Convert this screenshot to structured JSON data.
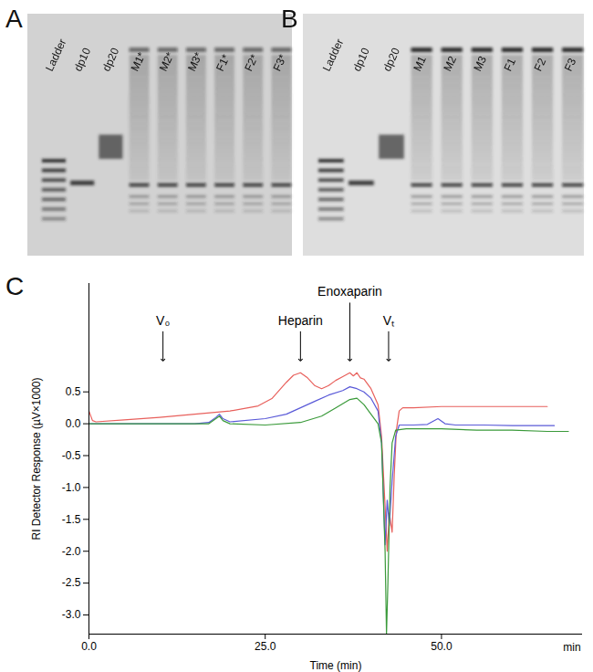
{
  "panels": [
    {
      "label": "A",
      "type": "gel",
      "lanes": [
        "Ladder",
        "dp10",
        "dp20",
        "M1*",
        "M2*",
        "M3*",
        "F1*",
        "F2*",
        "F3*"
      ]
    },
    {
      "label": "B",
      "type": "gel",
      "lanes": [
        "Ladder",
        "dp10",
        "dp20",
        "M1",
        "M2",
        "M3",
        "F1",
        "F2",
        "F3"
      ]
    }
  ],
  "chart_data": {
    "type": "line",
    "title": "C",
    "x_label": "Time (min)",
    "y_label": "RI Detector Response (µV×1000)",
    "x_unit_label": {
      "text": "min",
      "x": 68.5
    },
    "xlim": [
      0,
      70
    ],
    "xticks": [
      {
        "value": 0,
        "label": "0.0"
      },
      {
        "value": 25,
        "label": "25.0"
      },
      {
        "value": 50,
        "label": "50.0"
      }
    ],
    "ylim": [
      -3.3,
      2.2
    ],
    "yticks": [
      0.5,
      {
        "value": 0,
        "label": "0.0"
      },
      -0.5,
      {
        "value": -1,
        "label": "-1.0"
      },
      -1.5,
      {
        "value": -2,
        "label": "-2.0"
      },
      -2.5,
      {
        "value": -3,
        "label": "-3.0"
      }
    ],
    "grid": false,
    "annotations": [
      {
        "text": "V₀",
        "x": 10.5
      },
      {
        "text": "Heparin",
        "x": 30
      },
      {
        "text": "Enoxaparin",
        "x": 37
      },
      {
        "text": "Vₜ",
        "x": 42.5
      }
    ],
    "series": [
      {
        "color": "#e8605c",
        "x": [
          0,
          0.5,
          1,
          5,
          10,
          15,
          20,
          24,
          26,
          28,
          29,
          30,
          31,
          32,
          33,
          34,
          35,
          36,
          37,
          37.5,
          38,
          38.5,
          39,
          40,
          41,
          41.5,
          42,
          42.3,
          42.6,
          43,
          43.3,
          43.6,
          44,
          44.5,
          46,
          50,
          55,
          60,
          65
        ],
        "values": [
          0.2,
          0.05,
          0.03,
          0.06,
          0.1,
          0.15,
          0.2,
          0.28,
          0.4,
          0.65,
          0.76,
          0.8,
          0.72,
          0.6,
          0.55,
          0.6,
          0.68,
          0.74,
          0.8,
          0.75,
          0.8,
          0.72,
          0.7,
          0.55,
          0.3,
          -0.2,
          -1.3,
          -2.0,
          -1.4,
          -1.7,
          -0.8,
          -0.1,
          0.2,
          0.25,
          0.25,
          0.27,
          0.27,
          0.27,
          0.27
        ]
      },
      {
        "color": "#5a5ad8",
        "x": [
          0,
          5,
          10,
          15,
          17,
          18,
          18.5,
          19,
          20,
          25,
          28,
          30,
          32,
          34,
          36,
          37,
          38,
          39,
          40,
          41,
          41.5,
          42,
          42.3,
          42.6,
          43,
          43.5,
          44,
          46,
          48,
          49.5,
          50.5,
          52,
          56,
          60,
          66
        ],
        "values": [
          0,
          0,
          0,
          0,
          0.02,
          0.1,
          0.15,
          0.08,
          0.03,
          0.08,
          0.15,
          0.25,
          0.35,
          0.45,
          0.52,
          0.58,
          0.55,
          0.5,
          0.4,
          0.2,
          -0.3,
          -1.9,
          -1.2,
          -1.6,
          -0.9,
          -0.2,
          -0.02,
          -0.02,
          -0.01,
          0.08,
          0,
          -0.02,
          -0.02,
          -0.03,
          -0.03
        ]
      },
      {
        "color": "#3a9a3a",
        "x": [
          0,
          5,
          10,
          15,
          17,
          18,
          18.5,
          19,
          20,
          25,
          30,
          33,
          35,
          37,
          38,
          39,
          40,
          41,
          41.5,
          42,
          42.2,
          42.4,
          42.7,
          43,
          43.5,
          45,
          50,
          55,
          60,
          65,
          68
        ],
        "values": [
          0,
          0,
          0,
          0,
          0,
          0.08,
          0.12,
          0.05,
          0,
          -0.02,
          0.02,
          0.12,
          0.25,
          0.38,
          0.4,
          0.3,
          0.15,
          0,
          -0.3,
          -2.0,
          -3.3,
          -2.5,
          -1.0,
          -0.3,
          -0.1,
          -0.08,
          -0.08,
          -0.1,
          -0.1,
          -0.12,
          -0.12
        ]
      }
    ]
  }
}
